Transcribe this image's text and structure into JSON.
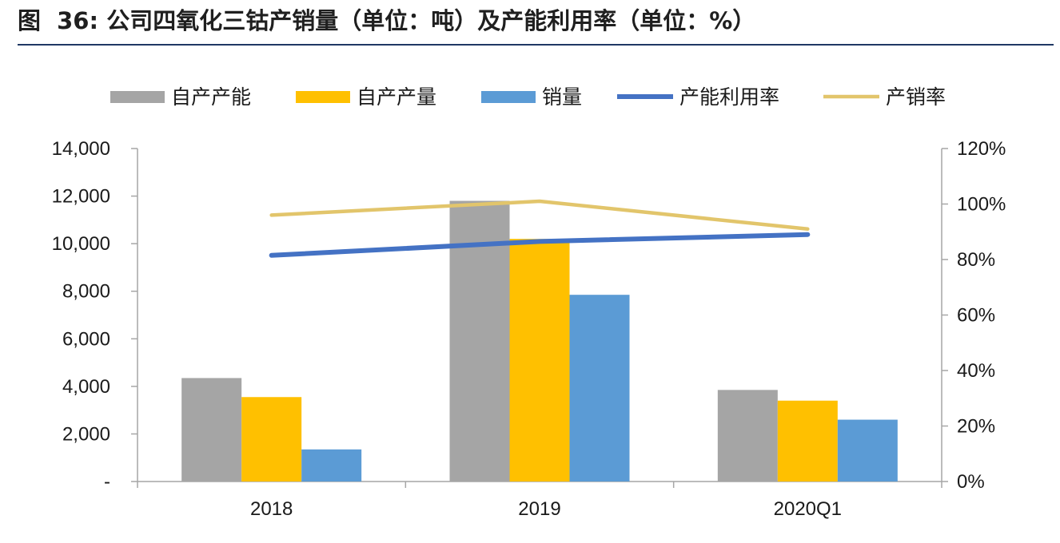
{
  "figure": {
    "label": "图",
    "number": "36:",
    "caption": "公司四氧化三钴产销量（单位：吨）及产能利用率（单位：%）"
  },
  "chart_data": {
    "type": "bar",
    "title": "",
    "categories": [
      "2018",
      "2019",
      "2020Q1"
    ],
    "series": [
      {
        "name": "自产产能",
        "kind": "bar",
        "axis": "left",
        "color": "#a5a5a5",
        "values": [
          4350,
          11800,
          3850
        ]
      },
      {
        "name": "自产产量",
        "kind": "bar",
        "axis": "left",
        "color": "#ffc000",
        "values": [
          3550,
          10200,
          3400
        ]
      },
      {
        "name": "销量",
        "kind": "bar",
        "axis": "left",
        "color": "#5b9bd5",
        "values": [
          1350,
          7850,
          2600
        ]
      },
      {
        "name": "产能利用率",
        "kind": "line",
        "axis": "right",
        "color": "#4472c4",
        "values": [
          81.5,
          86.5,
          89.0
        ]
      },
      {
        "name": "产销率",
        "kind": "line",
        "axis": "right",
        "color": "#e2c56b",
        "values": [
          96.0,
          101.0,
          91.0
        ]
      }
    ],
    "y_left": {
      "ylim": [
        0,
        14000
      ],
      "ticks": [
        0,
        2000,
        4000,
        6000,
        8000,
        10000,
        12000,
        14000
      ],
      "tick_labels": [
        "-",
        "2,000",
        "4,000",
        "6,000",
        "8,000",
        "10,000",
        "12,000",
        "14,000"
      ]
    },
    "y_right": {
      "ylim": [
        0,
        120
      ],
      "ticks": [
        0,
        20,
        40,
        60,
        80,
        100,
        120
      ],
      "tick_labels": [
        "0%",
        "20%",
        "40%",
        "60%",
        "80%",
        "100%",
        "120%"
      ]
    },
    "grid": false,
    "legend": "top"
  }
}
